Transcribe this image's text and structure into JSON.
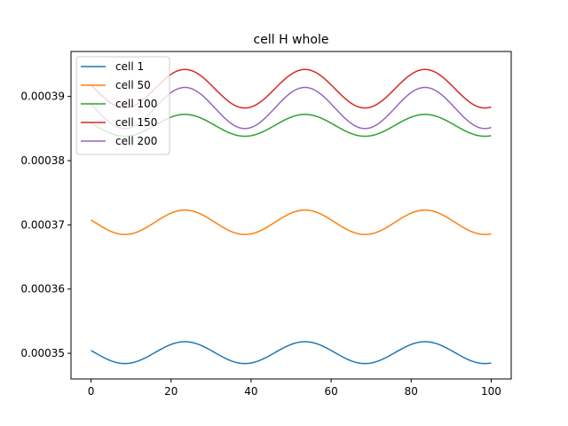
{
  "chart_data": {
    "type": "line",
    "title": "cell H whole",
    "xlabel": "",
    "ylabel": "",
    "xlim": [
      -5,
      105
    ],
    "ylim": [
      0.000346,
      0.000397
    ],
    "x_ticks": [
      0,
      20,
      40,
      60,
      80,
      100
    ],
    "x_tick_labels": [
      "0",
      "20",
      "40",
      "60",
      "80",
      "100"
    ],
    "y_ticks": [
      0.00035,
      0.00036,
      0.00037,
      0.00038,
      0.00039
    ],
    "y_tick_labels": [
      "0.00035",
      "0.00036",
      "0.00037",
      "0.00038",
      "0.00039"
    ],
    "grid": false,
    "legend_position": "top-left",
    "x_range": [
      0,
      100
    ],
    "period": 30,
    "series": [
      {
        "name": "cell 1",
        "color": "#1f77b4",
        "mean": 0.0003501,
        "amplitude": 1.7e-06,
        "phase": -0.2
      },
      {
        "name": "cell 50",
        "color": "#ff7f0e",
        "mean": 0.0003704,
        "amplitude": 1.9e-06,
        "phase": -0.2
      },
      {
        "name": "cell 100",
        "color": "#2ca02c",
        "mean": 0.0003855,
        "amplitude": 1.7e-06,
        "phase": -0.2
      },
      {
        "name": "cell 150",
        "color": "#d62728",
        "mean": 0.0003912,
        "amplitude": 3e-06,
        "phase": -0.2
      },
      {
        "name": "cell 200",
        "color": "#9467bd",
        "mean": 0.0003882,
        "amplitude": 3.2e-06,
        "phase": -0.2
      }
    ]
  }
}
